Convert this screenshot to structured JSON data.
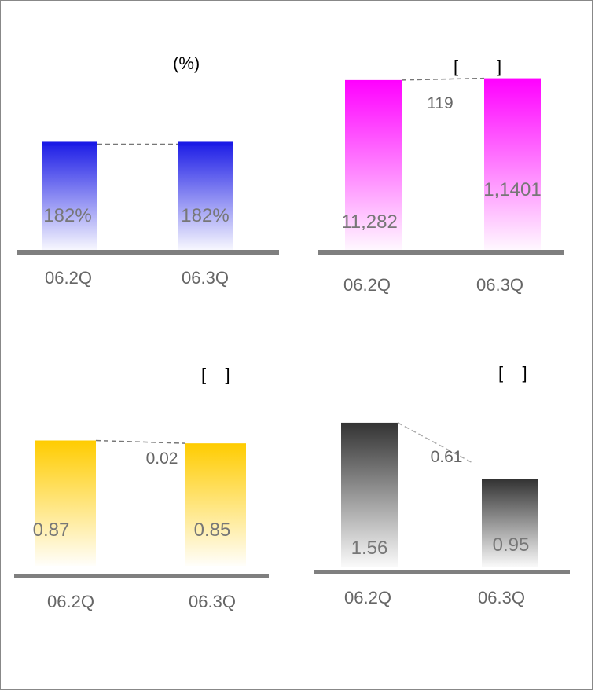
{
  "chart_data": [
    {
      "type": "bar",
      "unit_label": "(%)",
      "categories": [
        "06.2Q",
        "06.3Q"
      ],
      "values": [
        182,
        182
      ],
      "value_labels": [
        "182%",
        "182%"
      ],
      "change_label": "",
      "ylim": [
        0,
        300
      ],
      "color": "#1a1ae6",
      "grid": false
    },
    {
      "type": "bar",
      "unit_label": "[        ]",
      "categories": [
        "06.2Q",
        "06.3Q"
      ],
      "values": [
        11282,
        11401
      ],
      "value_labels": [
        "11,282",
        "1,1401"
      ],
      "change_label": "119",
      "ylim": [
        0,
        15000
      ],
      "color": "#ff00ff",
      "grid": false
    },
    {
      "type": "bar",
      "unit_label": "[    ]",
      "categories": [
        "06.2Q",
        "06.3Q"
      ],
      "values": [
        0.87,
        0.85
      ],
      "value_labels": [
        "0.87",
        "0.85"
      ],
      "change_label": "0.02",
      "ylim": [
        0,
        1.2
      ],
      "color": "#ffcc00",
      "grid": false
    },
    {
      "type": "bar",
      "unit_label": "[    ]",
      "categories": [
        "06.2Q",
        "06.3Q"
      ],
      "values": [
        1.56,
        0.95
      ],
      "value_labels": [
        "1.56",
        "0.95"
      ],
      "change_label": "0.61",
      "ylim": [
        0,
        2.0
      ],
      "color": "#333333",
      "grid": false
    }
  ]
}
